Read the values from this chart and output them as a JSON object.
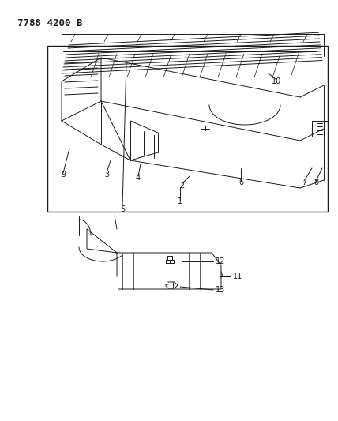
{
  "title": "7788 4200 B",
  "bg_color": "#ffffff",
  "line_color": "#1a1a1a",
  "title_fontsize": 9,
  "label_fontsize": 7,
  "fig_width": 4.28,
  "fig_height": 5.33,
  "dpi": 100
}
